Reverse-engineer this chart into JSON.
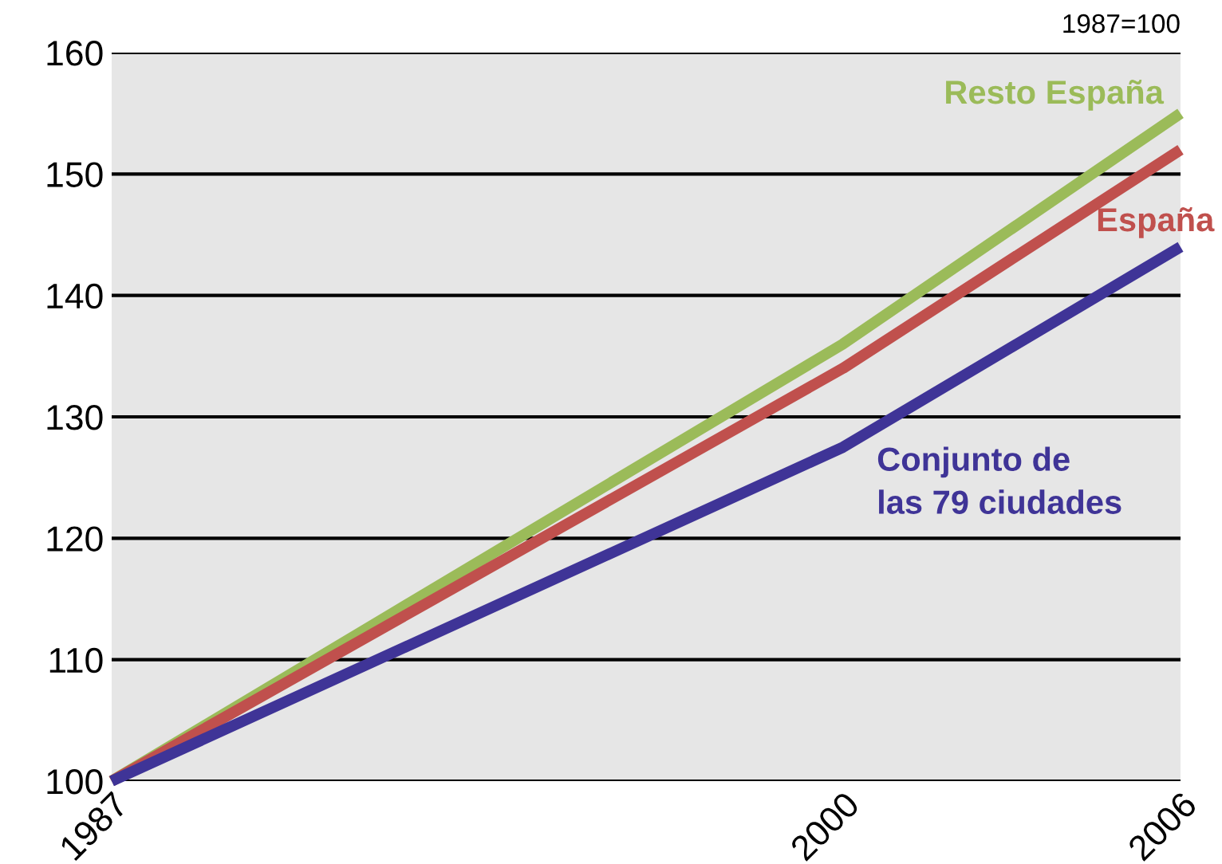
{
  "chart_data": {
    "type": "line",
    "x": [
      1987,
      2000,
      2006
    ],
    "xlim": [
      1987,
      2006
    ],
    "xticks": [
      1987,
      2000,
      2006
    ],
    "ylim": [
      100,
      160
    ],
    "yticks": [
      100,
      110,
      120,
      130,
      140,
      150,
      160
    ],
    "grid": "y",
    "legend": false,
    "marker": "none",
    "line_style": "solid",
    "series": [
      {
        "name": "Resto España",
        "color": "#9bbb59",
        "values": [
          100,
          136,
          155
        ]
      },
      {
        "name": "España",
        "color": "#c0504d",
        "values": [
          100,
          134,
          152
        ]
      },
      {
        "name": "Conjunto de\nlas 79 ciudades",
        "color": "#3f3497",
        "values": [
          100,
          127.5,
          144
        ]
      }
    ],
    "annotations": [
      "1987=100"
    ]
  }
}
